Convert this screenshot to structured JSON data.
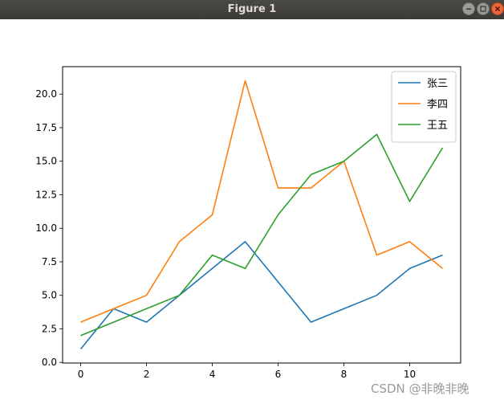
{
  "window": {
    "title": "Figure 1",
    "controls": {
      "minimize_icon": "minimize-icon",
      "maximize_icon": "maximize-icon",
      "close_icon": "close-icon"
    }
  },
  "chart_data": {
    "type": "line",
    "x": [
      0,
      1,
      2,
      3,
      4,
      5,
      6,
      7,
      8,
      9,
      10,
      11
    ],
    "xticks": [
      0,
      2,
      4,
      6,
      8,
      10
    ],
    "yticks": [
      0.0,
      2.5,
      5.0,
      7.5,
      10.0,
      12.5,
      15.0,
      17.5,
      20.0
    ],
    "ytick_labels": [
      "0.0",
      "2.5",
      "5.0",
      "7.5",
      "10.0",
      "12.5",
      "15.0",
      "17.5",
      "20.0"
    ],
    "xlim": [
      -0.55,
      11.55
    ],
    "ylim": [
      -0.05,
      22.05
    ],
    "legend_position": "upper right",
    "grid": false,
    "series": [
      {
        "name": "张三",
        "color": "#1f77b4",
        "values": [
          1,
          4,
          3,
          5,
          7,
          9,
          6,
          3,
          4,
          5,
          7,
          8
        ]
      },
      {
        "name": "李四",
        "color": "#ff7f0e",
        "values": [
          3,
          4,
          5,
          9,
          11,
          21,
          13,
          13,
          15,
          8,
          9,
          7
        ]
      },
      {
        "name": "王五",
        "color": "#2ca02c",
        "values": [
          2,
          3,
          4,
          5,
          8,
          7,
          11,
          14,
          15,
          17,
          12,
          16
        ]
      }
    ]
  },
  "watermark": "CSDN @非晚非晚"
}
